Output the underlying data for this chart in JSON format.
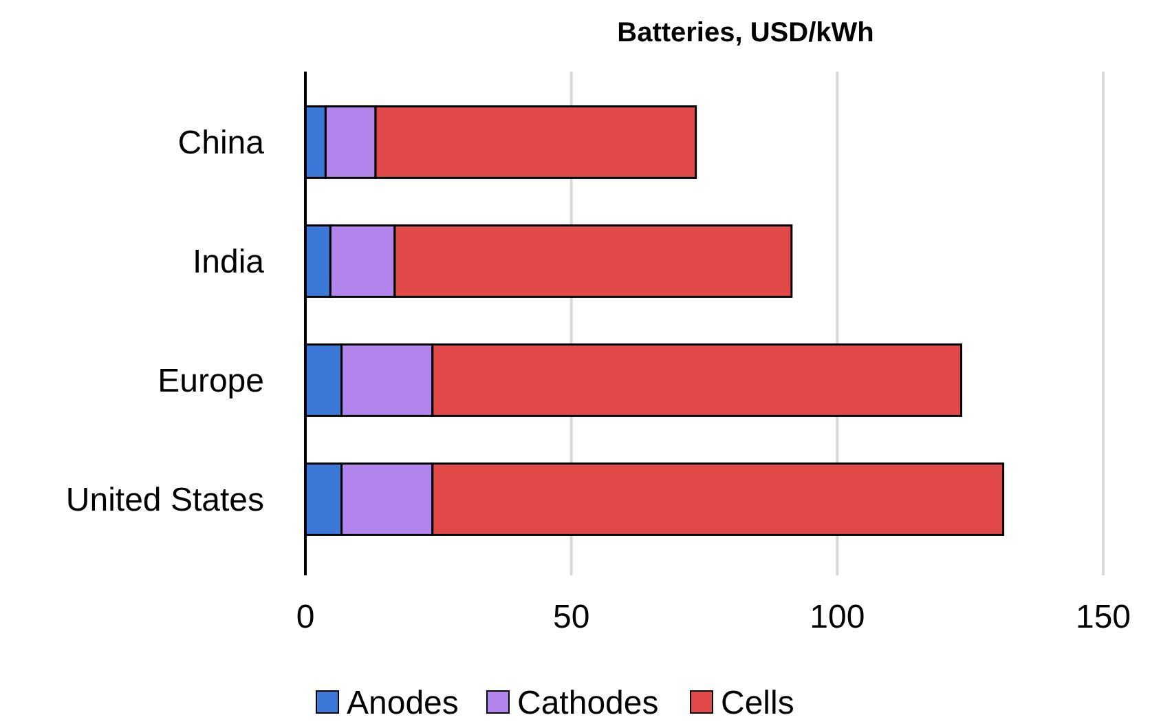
{
  "chart_data": {
    "type": "bar",
    "orientation": "horizontal",
    "stacked": true,
    "title": "Batteries, USD/kWh",
    "categories": [
      "China",
      "India",
      "Europe",
      "United States"
    ],
    "series": [
      {
        "name": "Anodes",
        "color": "#3c78d8",
        "values": [
          3.8,
          4.7,
          6.8,
          6.8
        ]
      },
      {
        "name": "Cathodes",
        "color": "#b185ec",
        "values": [
          9.4,
          12.1,
          17.1,
          17.1
        ]
      },
      {
        "name": "Cells",
        "color": "#e24a4a",
        "values": [
          60.2,
          74.6,
          99.4,
          107.3
        ]
      }
    ],
    "xlim": [
      0,
      150
    ],
    "xticks": [
      0,
      50,
      100,
      150
    ],
    "grid": "x",
    "legend": "bottom"
  }
}
